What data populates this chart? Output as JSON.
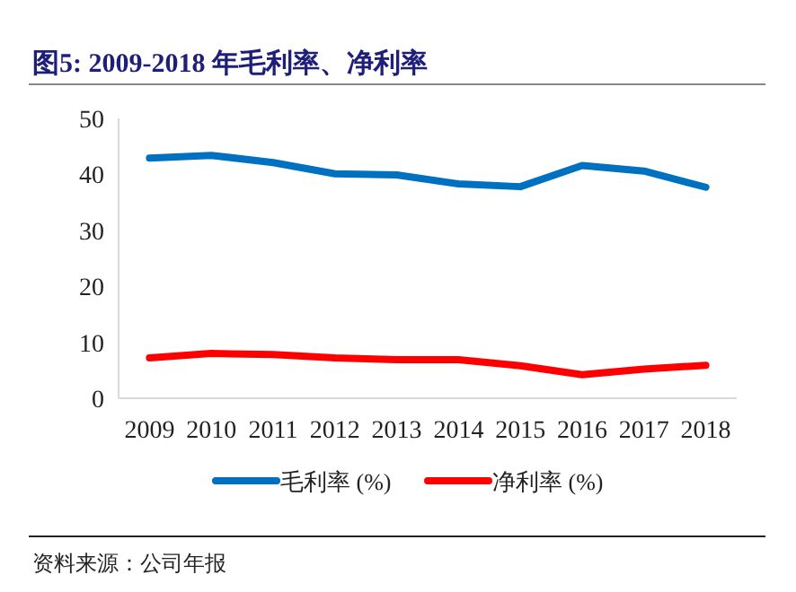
{
  "chart_data": {
    "type": "line",
    "title": "图5:    2009-2018 年毛利率、净利率",
    "categories": [
      "2009",
      "2010",
      "2011",
      "2012",
      "2013",
      "2014",
      "2015",
      "2016",
      "2017",
      "2018"
    ],
    "series": [
      {
        "name": "毛利率 (%)",
        "color": "#0070c0",
        "values": [
          42.9,
          43.4,
          42.1,
          40.1,
          39.9,
          38.3,
          37.8,
          41.6,
          40.6,
          37.7
        ]
      },
      {
        "name": "净利率 (%)",
        "color": "#ff0000",
        "values": [
          7.2,
          8.0,
          7.8,
          7.2,
          6.9,
          6.9,
          5.8,
          4.2,
          5.2,
          5.9
        ]
      }
    ],
    "ylim": [
      0,
      50
    ],
    "yticks": [
      0,
      10,
      20,
      30,
      40,
      50
    ],
    "legend": "bottom",
    "annotations": [
      "资料来源：公司年报"
    ]
  }
}
